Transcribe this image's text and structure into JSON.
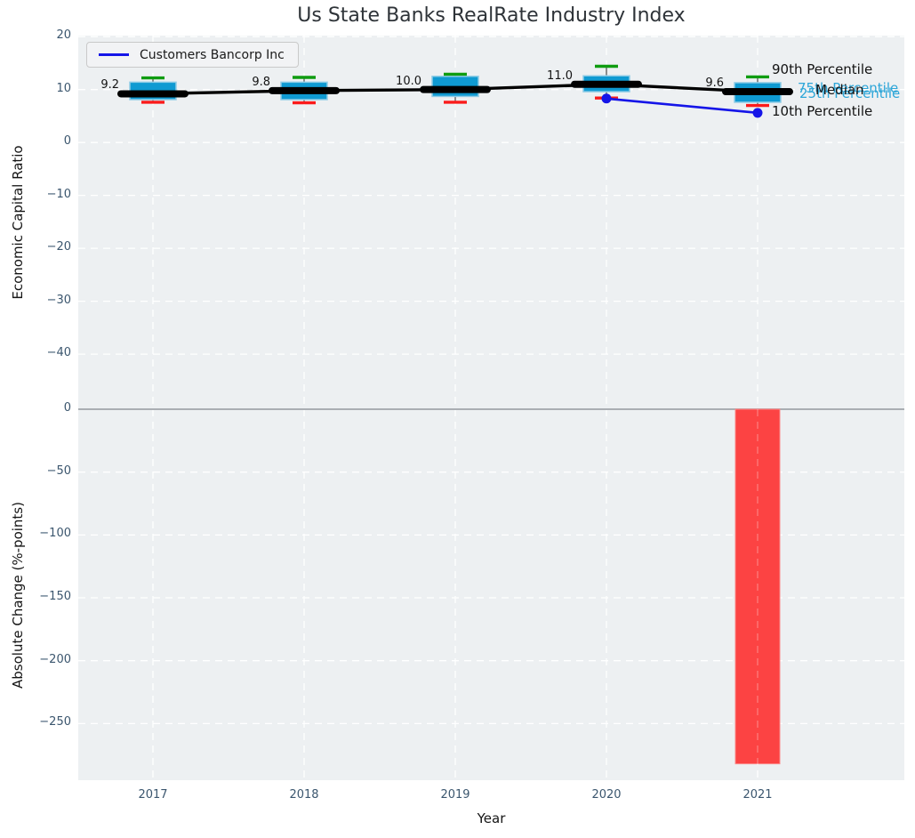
{
  "title": "Us State Banks RealRate Industry Index",
  "legend": {
    "label": "Customers Bancorp Inc"
  },
  "axes": {
    "x": {
      "label": "Year",
      "ticks": [
        "2017",
        "2018",
        "2019",
        "2020",
        "2021"
      ]
    },
    "top_y": {
      "label": "Economic Capital Ratio",
      "ticks": [
        20,
        10,
        0,
        -10,
        -20,
        -30,
        -40
      ],
      "lim": [
        -50.4,
        20.2
      ]
    },
    "bottom_y": {
      "label": "Absolute Change (%-points)",
      "ticks": [
        0,
        -50,
        -100,
        -150,
        -200,
        -250
      ],
      "lim": [
        -295,
        0
      ]
    }
  },
  "annotations": {
    "p90": "90th Percentile",
    "p75": "75th Percentile",
    "median": "Median",
    "p25": "25th Percentile",
    "p10": "10th Percentile"
  },
  "colors": {
    "box_fill": "#0f9ad2",
    "box_edge": "#8fcce6",
    "whisker": "#4a4a4a",
    "cap_high": "#0f9c10",
    "cap_low": "#fa1b1b",
    "median_line": "#000000",
    "company_line": "#1515e8",
    "bar_fill": "#fc4343",
    "bar_edge": "#fd8a8a",
    "grid": "#ffffff",
    "zero_line": "#aaaeb3",
    "cyan_label": "#2ea6d8"
  },
  "chart_data": [
    {
      "type": "box",
      "title": "Us State Banks RealRate Industry Index",
      "xlabel": "Year",
      "ylabel": "Economic Capital Ratio",
      "categories": [
        2017,
        2018,
        2019,
        2020,
        2021
      ],
      "ylim": [
        -50.4,
        20.2
      ],
      "grid": true,
      "legend_position": "upper left",
      "boxes": [
        {
          "year": 2017,
          "p90": 12.2,
          "q3": 11.4,
          "median": 9.2,
          "q1": 8.1,
          "p10": 7.6,
          "label": "9.2"
        },
        {
          "year": 2018,
          "p90": 12.3,
          "q3": 11.4,
          "median": 9.8,
          "q1": 8.1,
          "p10": 7.5,
          "label": "9.8"
        },
        {
          "year": 2019,
          "p90": 12.9,
          "q3": 12.5,
          "median": 10.0,
          "q1": 8.7,
          "p10": 7.6,
          "label": "10.0"
        },
        {
          "year": 2020,
          "p90": 14.4,
          "q3": 12.6,
          "median": 11.0,
          "q1": 9.6,
          "p10": 8.4,
          "label": "11.0"
        },
        {
          "year": 2021,
          "p90": 12.4,
          "q3": 11.3,
          "median": 9.6,
          "q1": 7.6,
          "p10": 7.0,
          "label": "9.6"
        }
      ],
      "median_trend": {
        "values": [
          9.2,
          9.8,
          10.0,
          11.0,
          9.6
        ]
      },
      "series": [
        {
          "name": "Customers Bancorp Inc",
          "x": [
            2020,
            2021
          ],
          "y": [
            8.3,
            5.6
          ]
        }
      ]
    },
    {
      "type": "bar",
      "xlabel": "Year",
      "ylabel": "Absolute Change (%-points)",
      "categories": [
        2017,
        2018,
        2019,
        2020,
        2021
      ],
      "values": [
        null,
        null,
        null,
        null,
        -282
      ],
      "ylim": [
        -295,
        0
      ],
      "grid": true
    }
  ]
}
